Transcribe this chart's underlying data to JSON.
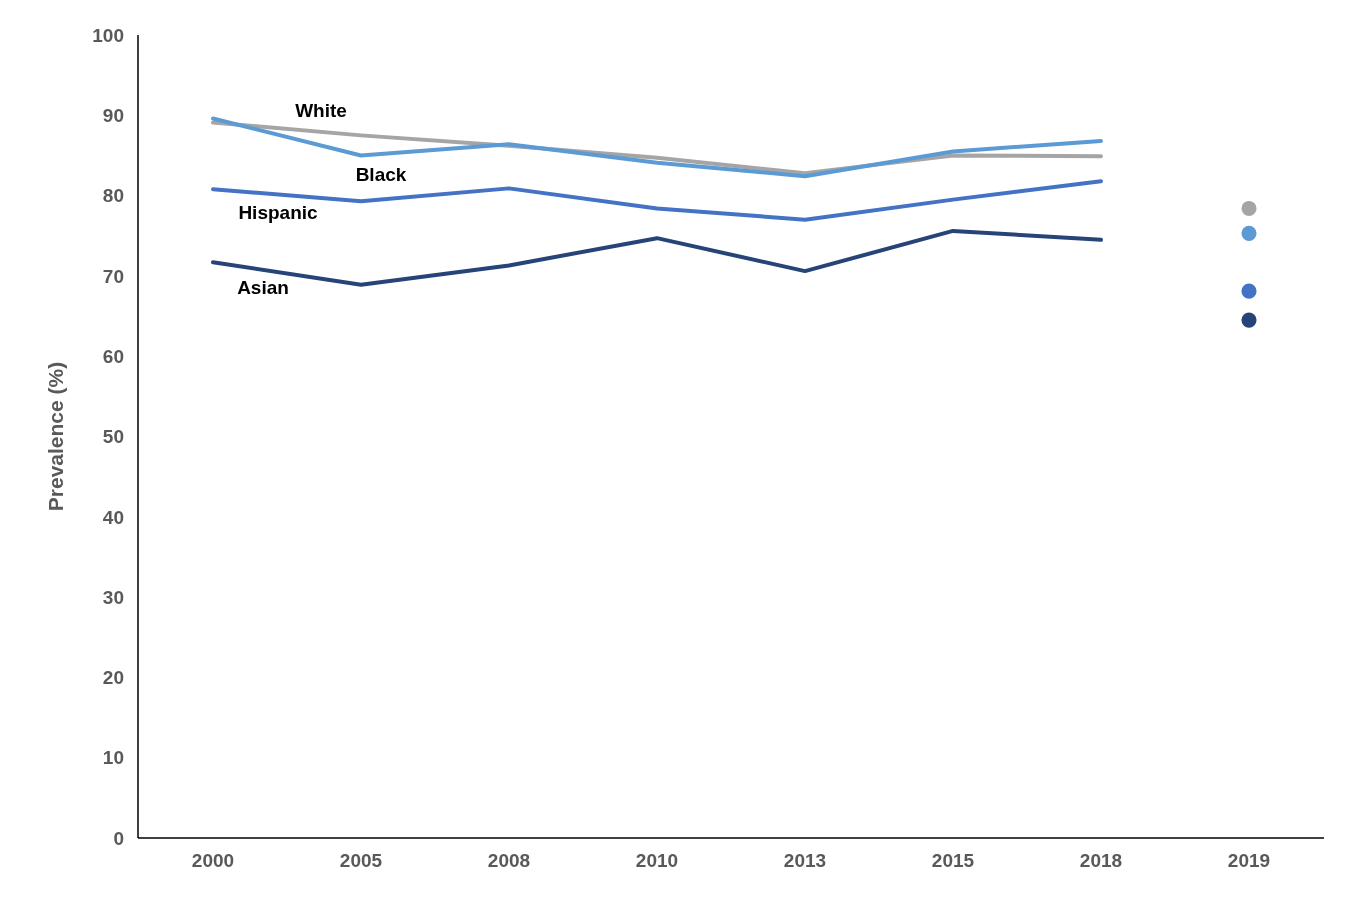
{
  "chart_data": {
    "type": "line",
    "ylabel": "Prevalence (%)",
    "categories": [
      "2000",
      "2005",
      "2008",
      "2010",
      "2013",
      "2015",
      "2018",
      "2019"
    ],
    "ylim": [
      0,
      100
    ],
    "yticks": [
      0,
      10,
      20,
      30,
      40,
      50,
      60,
      70,
      80,
      90,
      100
    ],
    "grid": false,
    "legend": false,
    "series": [
      {
        "name": "White",
        "marker": "none",
        "color": "#a5a5a5",
        "values": [
          89.1,
          87.5,
          86.2,
          84.7,
          82.8,
          85.0,
          84.9,
          null
        ]
      },
      {
        "name": "Black",
        "marker": "none",
        "color": "#5b9bd5",
        "values": [
          89.6,
          85.0,
          86.4,
          84.1,
          82.4,
          85.5,
          86.8,
          null
        ]
      },
      {
        "name": "Hispanic",
        "marker": "none",
        "color": "#4472c4",
        "values": [
          80.8,
          79.3,
          80.9,
          78.4,
          77.0,
          79.5,
          81.8,
          null
        ]
      },
      {
        "name": "Asian",
        "marker": "none",
        "color": "#264478",
        "values": [
          71.7,
          68.9,
          71.3,
          74.7,
          70.6,
          75.6,
          74.5,
          null
        ]
      },
      {
        "type": "scatter",
        "marker": "circle",
        "color": "#a5a5a5",
        "values": [
          null,
          null,
          null,
          null,
          null,
          null,
          null,
          78.4
        ]
      },
      {
        "type": "scatter",
        "marker": "circle",
        "color": "#5b9bd5",
        "values": [
          null,
          null,
          null,
          null,
          null,
          null,
          null,
          75.3
        ]
      },
      {
        "type": "scatter",
        "marker": "circle",
        "color": "#4472c4",
        "values": [
          null,
          null,
          null,
          null,
          null,
          null,
          null,
          68.1
        ]
      },
      {
        "type": "scatter",
        "marker": "circle",
        "color": "#264478",
        "values": [
          null,
          null,
          null,
          null,
          null,
          null,
          null,
          64.5
        ]
      }
    ]
  }
}
